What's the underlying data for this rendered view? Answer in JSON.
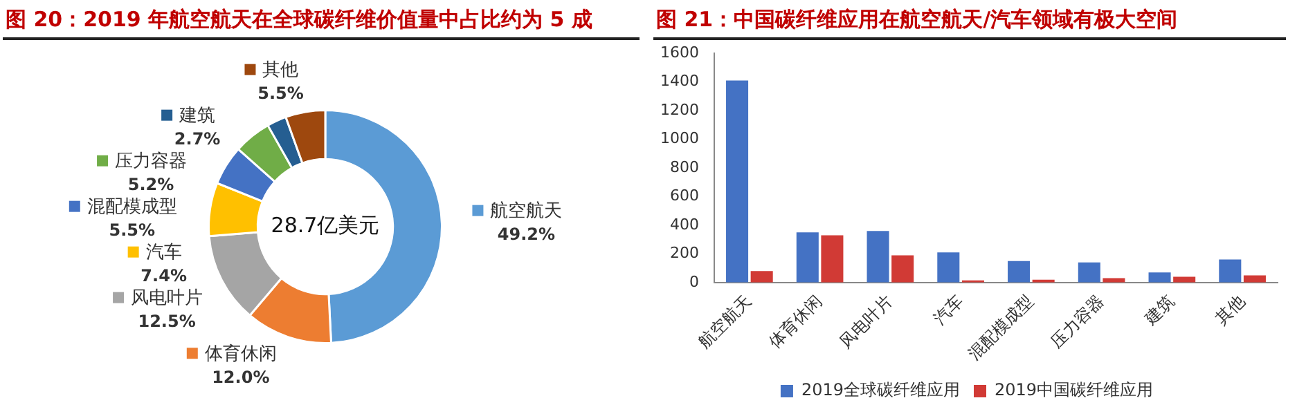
{
  "chart_data": [
    {
      "type": "donut",
      "title": "图 20：2019 年航空航天在全球碳纤维价值量中占比约为 5 成",
      "categories": [
        "航空航天",
        "体育休闲",
        "风电叶片",
        "汽车",
        "混配模成型",
        "压力容器",
        "建筑",
        "其他"
      ],
      "values": [
        49.2,
        12.0,
        12.5,
        7.4,
        5.5,
        5.2,
        2.7,
        5.5
      ],
      "value_labels": [
        "49.2%",
        "12.0%",
        "12.5%",
        "7.4%",
        "5.5%",
        "5.2%",
        "2.7%",
        "5.5%"
      ],
      "colors": [
        "#5b9bd5",
        "#ed7d31",
        "#a5a5a5",
        "#ffc000",
        "#4472c4",
        "#70ad47",
        "#255e91",
        "#9e480e"
      ],
      "annotations": [
        "28.7亿美元"
      ],
      "legend": "left"
    },
    {
      "type": "bar",
      "title": "图 21：中国碳纤维应用在航空航天/汽车领域有极大空间",
      "categories": [
        "航空航天",
        "体育休闲",
        "风电叶片",
        "汽车",
        "混配模成型",
        "压力容器",
        "建筑",
        "其他"
      ],
      "series": [
        {
          "name": "2019全球碳纤维应用",
          "color": "#4472c4",
          "values": [
            1410,
            350,
            360,
            210,
            150,
            140,
            70,
            160
          ]
        },
        {
          "name": "2019中国碳纤维应用",
          "color": "#d13a35",
          "values": [
            80,
            330,
            190,
            15,
            20,
            30,
            40,
            50
          ]
        }
      ],
      "ylim": [
        0,
        1600
      ],
      "yticks": [
        0,
        200,
        400,
        600,
        800,
        1000,
        1200,
        1400,
        1600
      ],
      "legend": "bottom"
    }
  ]
}
